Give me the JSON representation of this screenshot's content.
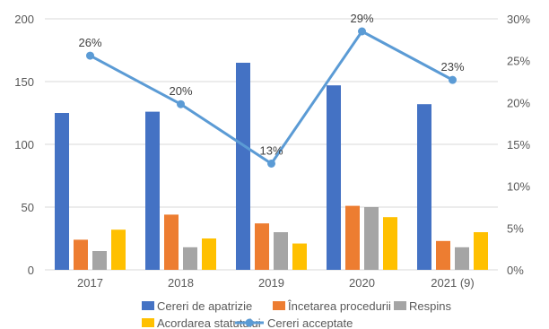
{
  "chart_data": {
    "type": "bar",
    "title": "",
    "categories": [
      "2017",
      "2018",
      "2019",
      "2020",
      "2021 (9)"
    ],
    "ylim_left": [
      0,
      200
    ],
    "ylim_right": [
      0,
      0.3
    ],
    "left_ticks": [
      "0",
      "50",
      "100",
      "150",
      "200"
    ],
    "right_ticks": [
      "0%",
      "5%",
      "10%",
      "15%",
      "20%",
      "25%",
      "30%"
    ],
    "series": [
      {
        "name": "Cereri de apatrizie",
        "type": "bar",
        "axis": "left",
        "color": "#4472C4",
        "values": [
          125,
          126,
          165,
          147,
          132
        ]
      },
      {
        "name": "Încetarea procedurii",
        "type": "bar",
        "axis": "left",
        "color": "#ED7D31",
        "values": [
          24,
          44,
          37,
          51,
          23
        ]
      },
      {
        "name": "Respins",
        "type": "bar",
        "axis": "left",
        "color": "#A5A5A5",
        "values": [
          15,
          18,
          30,
          50,
          18
        ]
      },
      {
        "name": "Acordarea statutului",
        "type": "bar",
        "axis": "left",
        "color": "#FFC000",
        "values": [
          32,
          25,
          21,
          42,
          30
        ]
      },
      {
        "name": "Cereri acceptate",
        "type": "line",
        "axis": "right",
        "color": "#5B9BD5",
        "values": [
          0.256,
          0.198,
          0.127,
          0.285,
          0.227
        ],
        "labels": [
          "26%",
          "20%",
          "13%",
          "29%",
          "23%"
        ]
      }
    ],
    "legend_position": "bottom"
  }
}
